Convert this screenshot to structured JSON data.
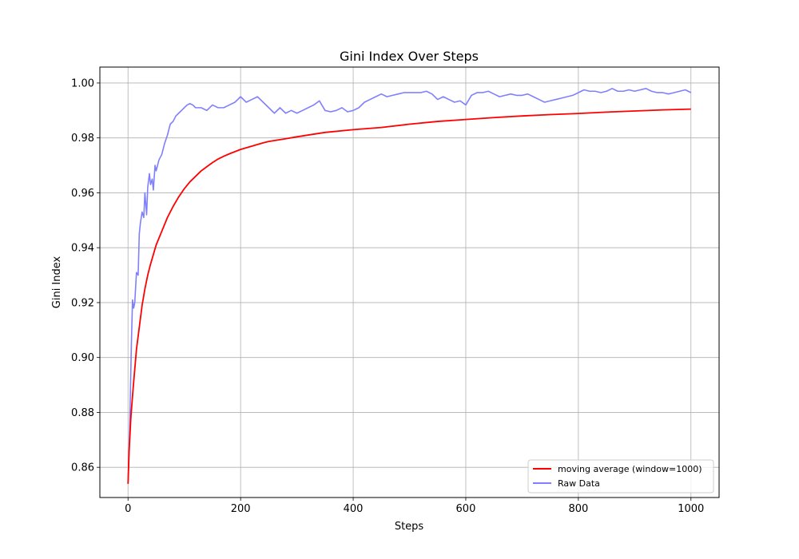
{
  "chart_data": {
    "type": "line",
    "title": "Gini Index Over Steps",
    "xlabel": "Steps",
    "ylabel": "Gini Index",
    "xlim": [
      -50,
      1050
    ],
    "ylim": [
      0.849,
      1.0058
    ],
    "xticks": [
      0,
      200,
      400,
      600,
      800,
      1000
    ],
    "xtick_labels": [
      "0",
      "200",
      "400",
      "600",
      "800",
      "1000"
    ],
    "yticks": [
      0.86,
      0.88,
      0.9,
      0.92,
      0.94,
      0.96,
      0.98,
      1.0
    ],
    "ytick_labels": [
      "0.86",
      "0.88",
      "0.90",
      "0.92",
      "0.94",
      "0.96",
      "0.98",
      "1.00"
    ],
    "grid": true,
    "legend_position": "lower-right",
    "series": [
      {
        "name": "moving average (window=1000)",
        "color": "#ff0000",
        "x": [
          0,
          2,
          5,
          8,
          10,
          15,
          20,
          25,
          30,
          35,
          40,
          50,
          60,
          70,
          80,
          90,
          100,
          110,
          120,
          130,
          140,
          150,
          160,
          170,
          180,
          190,
          200,
          220,
          240,
          250,
          280,
          300,
          350,
          400,
          450,
          500,
          550,
          600,
          650,
          700,
          750,
          800,
          850,
          900,
          950,
          1000
        ],
        "y": [
          0.854,
          0.866,
          0.878,
          0.886,
          0.891,
          0.903,
          0.911,
          0.919,
          0.925,
          0.93,
          0.934,
          0.941,
          0.946,
          0.951,
          0.955,
          0.9585,
          0.9615,
          0.964,
          0.966,
          0.968,
          0.9695,
          0.971,
          0.9723,
          0.9733,
          0.9742,
          0.975,
          0.9758,
          0.977,
          0.9782,
          0.9787,
          0.9797,
          0.9804,
          0.982,
          0.983,
          0.9838,
          0.985,
          0.986,
          0.9867,
          0.9874,
          0.988,
          0.9885,
          0.9889,
          0.9894,
          0.9898,
          0.9902,
          0.9905
        ]
      },
      {
        "name": "Raw Data",
        "color": "#8080ff",
        "x": [
          0,
          3,
          6,
          8,
          10,
          12,
          15,
          18,
          20,
          22,
          25,
          28,
          30,
          33,
          35,
          38,
          40,
          43,
          45,
          48,
          50,
          55,
          60,
          65,
          70,
          75,
          80,
          85,
          90,
          95,
          100,
          105,
          110,
          115,
          120,
          130,
          140,
          150,
          160,
          170,
          180,
          190,
          200,
          210,
          220,
          230,
          240,
          250,
          260,
          270,
          280,
          290,
          300,
          310,
          320,
          330,
          340,
          350,
          360,
          370,
          380,
          390,
          400,
          410,
          420,
          430,
          440,
          450,
          460,
          470,
          480,
          490,
          500,
          510,
          520,
          530,
          540,
          550,
          560,
          570,
          580,
          590,
          600,
          610,
          620,
          630,
          640,
          650,
          660,
          670,
          680,
          690,
          700,
          710,
          720,
          730,
          740,
          750,
          760,
          770,
          780,
          790,
          800,
          810,
          820,
          830,
          840,
          850,
          860,
          870,
          880,
          890,
          900,
          910,
          920,
          930,
          940,
          950,
          960,
          970,
          980,
          990,
          1000
        ],
        "y": [
          0.854,
          0.875,
          0.905,
          0.921,
          0.918,
          0.92,
          0.931,
          0.93,
          0.945,
          0.949,
          0.953,
          0.951,
          0.96,
          0.952,
          0.962,
          0.967,
          0.963,
          0.965,
          0.961,
          0.97,
          0.968,
          0.972,
          0.974,
          0.978,
          0.981,
          0.985,
          0.986,
          0.988,
          0.989,
          0.99,
          0.991,
          0.992,
          0.9925,
          0.992,
          0.991,
          0.991,
          0.99,
          0.992,
          0.991,
          0.991,
          0.992,
          0.993,
          0.995,
          0.993,
          0.994,
          0.995,
          0.993,
          0.991,
          0.989,
          0.991,
          0.989,
          0.99,
          0.989,
          0.99,
          0.991,
          0.992,
          0.9935,
          0.99,
          0.9895,
          0.99,
          0.991,
          0.9895,
          0.99,
          0.991,
          0.993,
          0.994,
          0.995,
          0.996,
          0.995,
          0.9955,
          0.996,
          0.9965,
          0.9965,
          0.9965,
          0.9965,
          0.997,
          0.996,
          0.994,
          0.995,
          0.994,
          0.993,
          0.9935,
          0.992,
          0.9955,
          0.9965,
          0.9965,
          0.997,
          0.996,
          0.995,
          0.9955,
          0.996,
          0.9955,
          0.9955,
          0.996,
          0.995,
          0.994,
          0.993,
          0.9935,
          0.994,
          0.9945,
          0.995,
          0.9955,
          0.9965,
          0.9975,
          0.997,
          0.997,
          0.9965,
          0.997,
          0.998,
          0.997,
          0.997,
          0.9975,
          0.997,
          0.9975,
          0.998,
          0.997,
          0.9965,
          0.9965,
          0.996,
          0.9965,
          0.997,
          0.9975,
          0.9965
        ]
      }
    ]
  }
}
